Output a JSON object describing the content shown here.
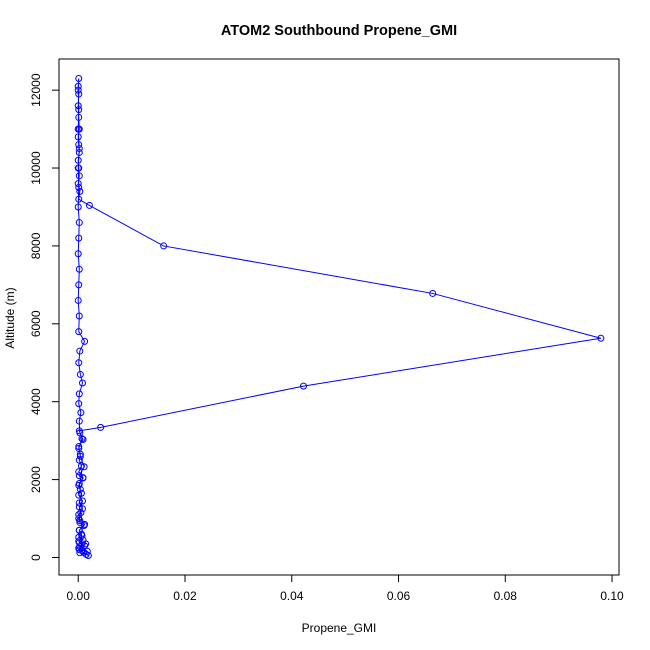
{
  "chart_data": {
    "type": "line",
    "title": "ATOM2 Southbound Propene_GMI",
    "xlabel": "Propene_GMI",
    "ylabel": "Altitude (m)",
    "xlim": [
      -0.0036,
      0.1013
    ],
    "ylim": [
      -450,
      12800
    ],
    "x_ticks": [
      0,
      0.02,
      0.04,
      0.06,
      0.08,
      0.1
    ],
    "x_tick_labels": [
      "0.00",
      "0.02",
      "0.04",
      "0.06",
      "0.08",
      "0.10"
    ],
    "y_ticks": [
      0,
      2000,
      4000,
      6000,
      8000,
      10000,
      12000
    ],
    "y_tick_labels": [
      "0",
      "2000",
      "4000",
      "6000",
      "8000",
      "10000",
      "12000"
    ],
    "grid": false,
    "marker": "open-circle",
    "series": [
      {
        "color": "#0000ff",
        "points": [
          [
            0.0015,
            80
          ],
          [
            0.0003,
            120
          ],
          [
            0.0008,
            180
          ],
          [
            0.0001,
            240
          ],
          [
            0.0012,
            300
          ],
          [
            0.0002,
            380
          ],
          [
            0.0009,
            450
          ],
          [
            0.0001,
            520
          ],
          [
            0.0006,
            600
          ],
          [
            0.0002,
            700
          ],
          [
            0.0011,
            820
          ],
          [
            0.0003,
            900
          ],
          [
            0.0001,
            1000
          ],
          [
            0.0005,
            1150
          ],
          [
            0.0002,
            1300
          ],
          [
            0.0008,
            1450
          ],
          [
            0.0001,
            1600
          ],
          [
            0.0004,
            1750
          ],
          [
            0.0002,
            1900
          ],
          [
            0.0009,
            2050
          ],
          [
            0.0001,
            2200
          ],
          [
            0.0006,
            2350
          ],
          [
            0.0002,
            2500
          ],
          [
            0.0004,
            2650
          ],
          [
            0.0001,
            2800
          ],
          [
            0.0007,
            3050
          ],
          [
            0.0002,
            3250
          ],
          [
            0.0042,
            3340
          ],
          [
            0.0422,
            4400
          ],
          [
            0.0979,
            5630
          ],
          [
            0.0664,
            6780
          ],
          [
            0.016,
            8000
          ],
          [
            0.0021,
            9040
          ],
          [
            0.0001,
            9200
          ],
          [
            0.0003,
            9400
          ],
          [
            0.0,
            9600
          ],
          [
            0.0002,
            9800
          ],
          [
            0.0001,
            10000
          ],
          [
            0.0,
            10200
          ],
          [
            0.0002,
            10400
          ],
          [
            0.0001,
            10600
          ],
          [
            0.0,
            10800
          ],
          [
            0.0002,
            11000
          ],
          [
            0.0001,
            11300
          ],
          [
            0.0,
            11600
          ],
          [
            0.0001,
            11900
          ],
          [
            0.0,
            12100
          ],
          [
            0.0001,
            12300
          ],
          [
            0.0,
            12000
          ],
          [
            0.0001,
            11500
          ],
          [
            0.0,
            11000
          ],
          [
            0.0002,
            10500
          ],
          [
            0.0,
            10000
          ],
          [
            0.0001,
            9500
          ],
          [
            0.0,
            9000
          ],
          [
            0.0002,
            8600
          ],
          [
            0.0001,
            8200
          ],
          [
            0.0,
            7800
          ],
          [
            0.0002,
            7400
          ],
          [
            0.0001,
            7000
          ],
          [
            0.0,
            6600
          ],
          [
            0.0002,
            6200
          ],
          [
            0.0001,
            5800
          ],
          [
            0.0012,
            5550
          ],
          [
            0.0003,
            5300
          ],
          [
            0.0001,
            5000
          ],
          [
            0.0004,
            4700
          ],
          [
            0.0008,
            4480
          ],
          [
            0.0002,
            4200
          ],
          [
            0.0001,
            3950
          ],
          [
            0.0005,
            3720
          ],
          [
            0.0002,
            3500
          ],
          [
            0.0003,
            3200
          ],
          [
            0.0009,
            3030
          ],
          [
            0.0001,
            2850
          ],
          [
            0.0004,
            2600
          ],
          [
            0.0011,
            2330
          ],
          [
            0.0002,
            2100
          ],
          [
            0.0009,
            2040
          ],
          [
            0.0001,
            1850
          ],
          [
            0.0006,
            1650
          ],
          [
            0.0002,
            1400
          ],
          [
            0.0008,
            1250
          ],
          [
            0.0001,
            1100
          ],
          [
            0.0003,
            950
          ],
          [
            0.0012,
            850
          ],
          [
            0.0002,
            700
          ],
          [
            0.0007,
            560
          ],
          [
            0.0001,
            420
          ],
          [
            0.0014,
            350
          ],
          [
            0.0003,
            280
          ],
          [
            0.0017,
            160
          ],
          [
            0.0002,
            200
          ],
          [
            0.001,
            130
          ],
          [
            0.0019,
            50
          ]
        ]
      }
    ]
  }
}
